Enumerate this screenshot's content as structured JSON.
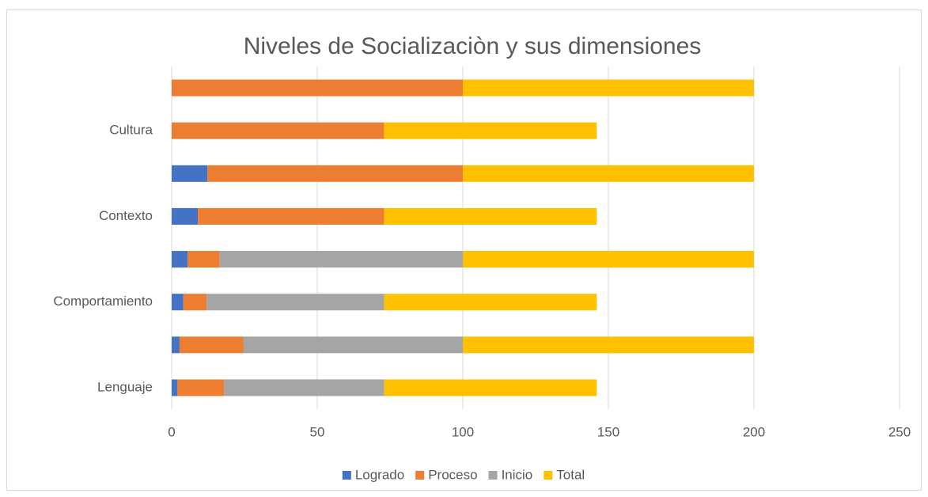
{
  "chart_data": {
    "type": "stacked_bar_horizontal",
    "title": "Niveles de Socializaciòn y sus dimensiones",
    "categories": [
      "Lenguaje",
      null,
      "Comportamiento",
      null,
      "Contexto",
      null,
      "Cultura",
      null
    ],
    "series": [
      {
        "name": "Logrado",
        "color": "#4472c4",
        "values": [
          2,
          2.7,
          4,
          5.5,
          9,
          12.3,
          0,
          0
        ]
      },
      {
        "name": "Proceso",
        "color": "#ed7d31",
        "values": [
          16,
          21.9,
          8,
          11,
          64,
          87.7,
          73,
          100
        ]
      },
      {
        "name": "Inicio",
        "color": "#a5a5a5",
        "values": [
          55,
          75.4,
          61,
          83.5,
          0,
          0,
          0,
          0
        ]
      },
      {
        "name": "Total",
        "color": "#ffc000",
        "values": [
          73,
          100,
          73,
          100,
          73,
          100,
          73,
          100
        ]
      }
    ],
    "xlim": [
      0,
      250
    ],
    "xticks": [
      0,
      50,
      100,
      150,
      200,
      250
    ],
    "grid": true,
    "legend": "bottom"
  }
}
